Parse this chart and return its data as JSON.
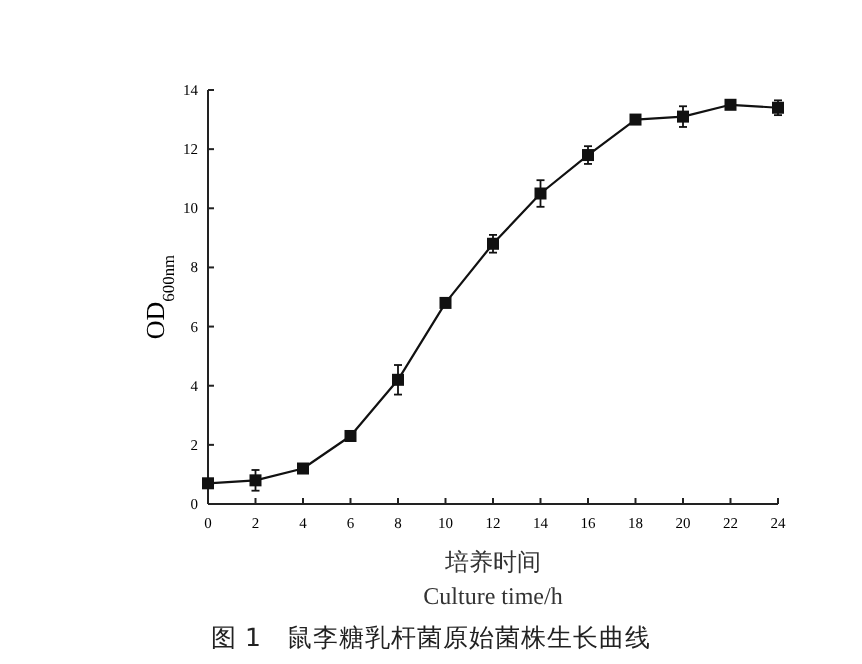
{
  "chart_data": {
    "type": "line",
    "title": "图 1　鼠李糖乳杆菌原始菌株生长曲线",
    "xlabel": "培养时间\nCulture time/h",
    "ylabel": "OD$_{600nm}$",
    "x": [
      0,
      2,
      4,
      6,
      8,
      10,
      12,
      14,
      16,
      18,
      20,
      22,
      24
    ],
    "series": [
      {
        "color": "#111111",
        "values": [
          0.7,
          0.8,
          1.2,
          2.3,
          4.2,
          6.8,
          8.8,
          10.5,
          11.8,
          13.0,
          13.1,
          13.5,
          13.4
        ],
        "errors": [
          0.1,
          0.35,
          0.1,
          0.1,
          0.5,
          0.1,
          0.3,
          0.45,
          0.3,
          0.1,
          0.35,
          0.1,
          0.25
        ]
      }
    ],
    "xlim": [
      0,
      24
    ],
    "xticks": [
      0,
      2,
      4,
      6,
      8,
      10,
      12,
      14,
      16,
      18,
      20,
      22,
      24
    ],
    "ylim": [
      0,
      14
    ],
    "yticks": [
      0,
      2,
      4,
      6,
      8,
      10,
      12,
      14
    ],
    "grid": false,
    "marker": "square",
    "line_style": "solid"
  }
}
